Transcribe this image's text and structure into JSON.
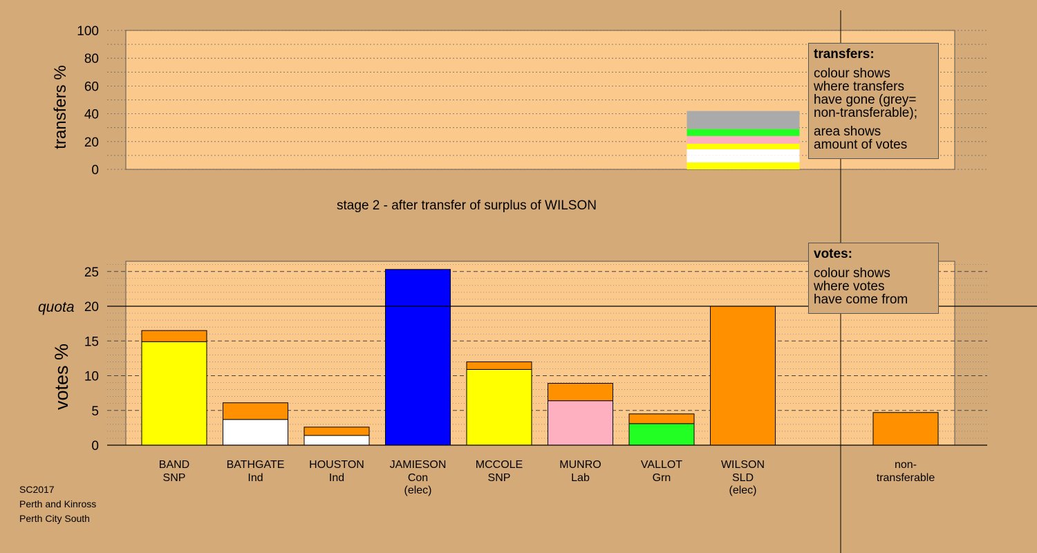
{
  "colors": {
    "background": "#d4aa78",
    "panel": "#fcc98c",
    "SNP": "#ffff00",
    "Ind": "#ffffff",
    "Con": "#0000ff",
    "Lab": "#ffb0c0",
    "Grn": "#22ff22",
    "SLD": "#ff9000",
    "non_transferable": "#aaaaaa"
  },
  "chart_data": [
    {
      "type": "bar",
      "stacked": true,
      "ylabel": "transfers %",
      "ylim": [
        0,
        100
      ],
      "yticks": [
        0,
        20,
        40,
        60,
        80,
        100
      ],
      "caption": "stage 2 - after transfer of surplus of WILSON",
      "bar_under": "WILSON",
      "segments_bottom_to_top": [
        {
          "party": "SNP",
          "label": "BAND",
          "value": 5.0
        },
        {
          "party": "Ind",
          "label": "BATHGATE",
          "value": 5.0
        },
        {
          "party": "Ind",
          "label": "HOUSTON",
          "value": 4.5
        },
        {
          "party": "SNP",
          "label": "MCCOLE",
          "value": 4.0
        },
        {
          "party": "Lab",
          "label": "MUNRO",
          "value": 5.5
        },
        {
          "party": "Grn",
          "label": "VALLOT",
          "value": 5.0
        },
        {
          "party": "non_transferable",
          "label": "non-transferable",
          "value": 13.0
        }
      ],
      "legend": {
        "title": "transfers:",
        "lines": [
          "colour shows",
          "where transfers",
          "have gone (grey=",
          "non-transferable);"
        ],
        "lines2": [
          "area shows",
          "amount of votes"
        ]
      }
    },
    {
      "type": "bar",
      "stacked": true,
      "ylabel": "votes %",
      "ylim": [
        0,
        26.5
      ],
      "yticks": [
        0,
        5,
        10,
        15,
        20,
        25
      ],
      "quota": 20,
      "quota_label": "quota",
      "candidates": [
        {
          "name": "BAND",
          "party": "SNP",
          "elected": "",
          "segments": [
            {
              "party": "SNP",
              "value": 14.9
            },
            {
              "party": "SLD",
              "value": 1.6
            }
          ]
        },
        {
          "name": "BATHGATE",
          "party": "Ind",
          "elected": "",
          "segments": [
            {
              "party": "Ind",
              "value": 3.7
            },
            {
              "party": "SLD",
              "value": 2.4
            }
          ]
        },
        {
          "name": "HOUSTON",
          "party": "Ind",
          "elected": "",
          "segments": [
            {
              "party": "Ind",
              "value": 1.4
            },
            {
              "party": "SLD",
              "value": 1.2
            }
          ]
        },
        {
          "name": "JAMIESON",
          "party": "Con",
          "elected": "(elec)",
          "segments": [
            {
              "party": "Con",
              "value": 25.3
            }
          ]
        },
        {
          "name": "MCCOLE",
          "party": "SNP",
          "elected": "",
          "segments": [
            {
              "party": "SNP",
              "value": 10.9
            },
            {
              "party": "SLD",
              "value": 1.1
            }
          ]
        },
        {
          "name": "MUNRO",
          "party": "Lab",
          "elected": "",
          "segments": [
            {
              "party": "Lab",
              "value": 6.4
            },
            {
              "party": "SLD",
              "value": 2.5
            }
          ]
        },
        {
          "name": "VALLOT",
          "party": "Grn",
          "elected": "",
          "segments": [
            {
              "party": "Grn",
              "value": 3.1
            },
            {
              "party": "SLD",
              "value": 1.4
            }
          ]
        },
        {
          "name": "WILSON",
          "party": "SLD",
          "elected": "(elec)",
          "segments": [
            {
              "party": "SLD",
              "value": 20.0
            }
          ]
        }
      ],
      "non_transferable": {
        "label1": "non-",
        "label2": "transferable",
        "value": 4.7,
        "party": "SLD"
      },
      "legend": {
        "title": "votes:",
        "lines": [
          "colour shows",
          "where votes",
          "have come from"
        ]
      }
    }
  ],
  "footer": {
    "line1": "SC2017",
    "line2": "Perth and Kinross",
    "line3": "Perth City South"
  }
}
